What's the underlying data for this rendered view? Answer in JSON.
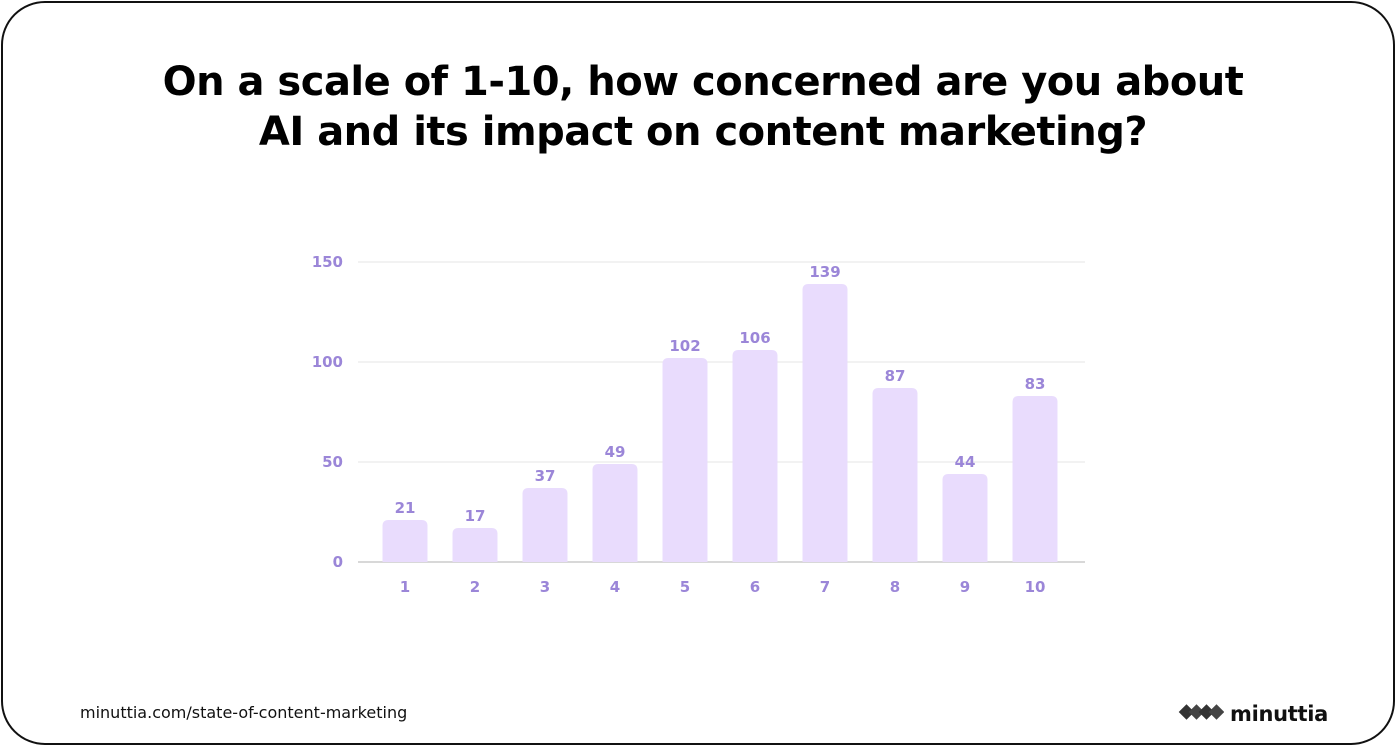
{
  "title_lines": [
    "On a scale of 1-10, how concerned are you about",
    "AI and its impact on content marketing?"
  ],
  "footer": {
    "url": "minuttia.com/state-of-content-marketing",
    "brand_name": "minuttia",
    "brand_icon": "diamond-chain-logo-icon"
  },
  "colors": {
    "bar": "#e9dcfd",
    "label": "#9b86d8",
    "grid": "#e4e4e4",
    "axis": "#cccccc",
    "text": "#000000"
  },
  "chart_data": {
    "type": "bar",
    "title": "On a scale of 1-10, how concerned are you about AI and its impact on content marketing?",
    "xlabel": "",
    "ylabel": "",
    "categories": [
      "1",
      "2",
      "3",
      "4",
      "5",
      "6",
      "7",
      "8",
      "9",
      "10"
    ],
    "values": [
      21,
      17,
      37,
      49,
      102,
      106,
      139,
      87,
      44,
      83
    ],
    "ylim": [
      0,
      150
    ],
    "yticks": [
      0,
      50,
      100,
      150
    ],
    "grid": true,
    "legend": "none"
  }
}
